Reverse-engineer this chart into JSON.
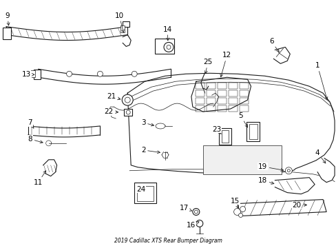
{
  "title": "2019 Cadillac XTS Rear Bumper Diagram",
  "background_color": "#ffffff",
  "line_color": "#1a1a1a",
  "label_color": "#000000",
  "figsize": [
    4.89,
    3.6
  ],
  "dpi": 100
}
